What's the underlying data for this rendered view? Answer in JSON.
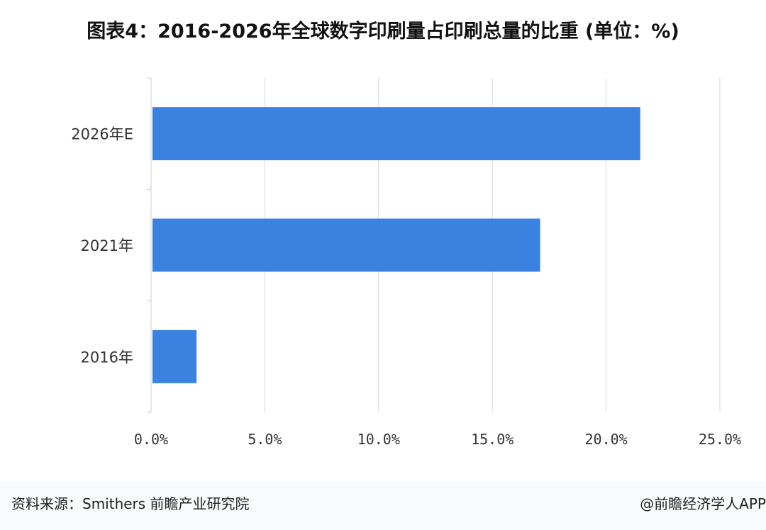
{
  "title": "图表4：2016-2026年全球数字印刷量占印刷总量的比重 (单位：%)",
  "colors": {
    "bar": "#3b82e0",
    "grid": "#d9d9d9",
    "axis": "#cccccc"
  },
  "chart_data": {
    "type": "bar",
    "orientation": "horizontal",
    "title": "图表4：2016-2026年全球数字印刷量占印刷总量的比重 (单位：%)",
    "categories": [
      "2026年E",
      "2021年",
      "2016年"
    ],
    "values": [
      21.5,
      17.1,
      2.0
    ],
    "xlim": [
      0,
      25
    ],
    "xticks": [
      0,
      5,
      10,
      15,
      20,
      25
    ],
    "xtick_labels": [
      "0.0%",
      "5.0%",
      "10.0%",
      "15.0%",
      "20.0%",
      "25.0%"
    ],
    "grid": "vertical",
    "legend": "none"
  },
  "footer": {
    "source": "资料来源：Smithers 前瞻产业研究院",
    "credit": "@前瞻经济学人APP"
  }
}
